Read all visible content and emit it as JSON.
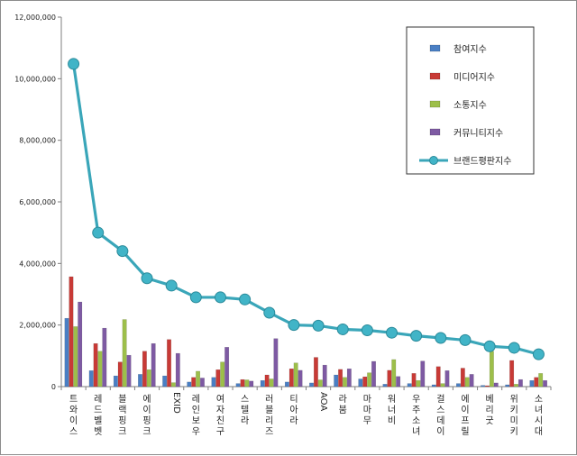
{
  "chart_data": {
    "type": "bar",
    "title": "",
    "xlabel": "",
    "ylabel": "",
    "ylim": [
      0,
      12000000
    ],
    "yticks": [
      "0",
      "2,000,000",
      "4,000,000",
      "6,000,000",
      "8,000,000",
      "10,000,000",
      "12,000,000"
    ],
    "grid": false,
    "legend_position": "top-right",
    "categories": [
      "트와이스",
      "레드벨벳",
      "블랙핑크",
      "에이핑크",
      "EXID",
      "레인보우",
      "여자친구",
      "스텔라",
      "러블리즈",
      "티아라",
      "AOA",
      "라붐",
      "마마무",
      "워너비",
      "우주소녀",
      "걸스데이",
      "에이프릴",
      "베리굿",
      "위키미키",
      "소녀시대"
    ],
    "series": [
      {
        "name": "참여지수",
        "type": "bar",
        "color": "#4a7fc4",
        "values": [
          2220000,
          520000,
          350000,
          400000,
          350000,
          150000,
          300000,
          100000,
          200000,
          150000,
          120000,
          380000,
          250000,
          80000,
          100000,
          60000,
          100000,
          40000,
          60000,
          200000
        ]
      },
      {
        "name": "미디어지수",
        "type": "bar",
        "color": "#c83a36",
        "values": [
          3570000,
          1400000,
          800000,
          1150000,
          1530000,
          300000,
          550000,
          230000,
          380000,
          580000,
          950000,
          560000,
          320000,
          530000,
          430000,
          650000,
          600000,
          30000,
          850000,
          300000
        ]
      },
      {
        "name": "소통지수",
        "type": "bar",
        "color": "#9dbf4a",
        "values": [
          1950000,
          1150000,
          2180000,
          550000,
          130000,
          500000,
          800000,
          220000,
          250000,
          770000,
          220000,
          300000,
          450000,
          880000,
          200000,
          100000,
          300000,
          1150000,
          80000,
          430000
        ]
      },
      {
        "name": "커뮤니티지수",
        "type": "bar",
        "color": "#7e5aa3",
        "values": [
          2750000,
          1900000,
          1020000,
          1400000,
          1080000,
          280000,
          1280000,
          180000,
          1560000,
          530000,
          700000,
          580000,
          820000,
          330000,
          830000,
          520000,
          400000,
          120000,
          230000,
          200000
        ]
      },
      {
        "name": "브랜드평판지수",
        "type": "line",
        "color": "#3aa6b9",
        "values": [
          10480000,
          5000000,
          4400000,
          3520000,
          3280000,
          2900000,
          2900000,
          2830000,
          2400000,
          2000000,
          1980000,
          1860000,
          1830000,
          1750000,
          1650000,
          1580000,
          1510000,
          1310000,
          1260000,
          1050000
        ]
      }
    ]
  }
}
